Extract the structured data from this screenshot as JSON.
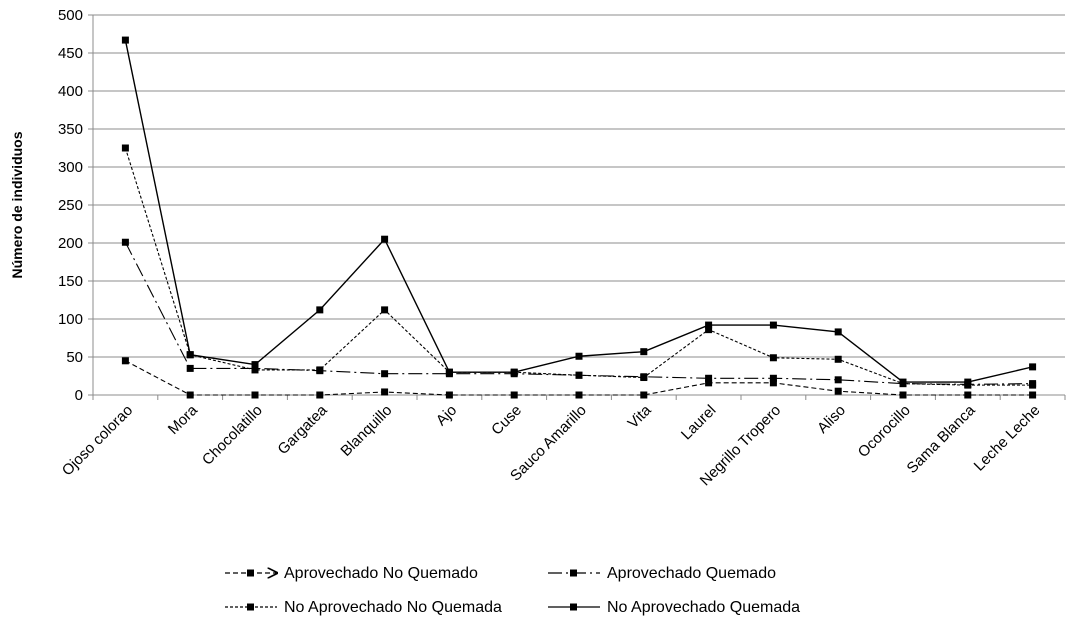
{
  "chart_data": {
    "type": "line",
    "title": "",
    "xlabel": "",
    "ylabel": "Número de individuos",
    "ylim": [
      0,
      500
    ],
    "yticks": [
      0,
      50,
      100,
      150,
      200,
      250,
      300,
      350,
      400,
      450,
      500
    ],
    "grid": true,
    "legend_position": "bottom",
    "categories": [
      "Ojoso colorao",
      "Mora",
      "Chocolatillo",
      "Gargatea",
      "Blanquillo",
      "Ajo",
      "Cuse",
      "Sauco Amarillo",
      "Vita",
      "Laurel",
      "Negrillo Tropero",
      "Aliso",
      "Ocorocillo",
      "Sama Blanca",
      "Leche Leche"
    ],
    "series": [
      {
        "name": "Aprovechado No Quemado",
        "dash": "5,3",
        "arrow": true,
        "values": [
          45,
          0,
          0,
          0,
          4,
          0,
          0,
          0,
          0,
          16,
          16,
          5,
          0,
          0,
          0
        ]
      },
      {
        "name": "Aprovechado  Quemado",
        "dash": "14,4,2,4",
        "arrow": false,
        "values": [
          201,
          35,
          35,
          32,
          28,
          28,
          28,
          26,
          24,
          22,
          22,
          20,
          15,
          14,
          15
        ]
      },
      {
        "name": "No Aprovechado No Quemada",
        "dash": "3,2",
        "arrow": false,
        "values": [
          325,
          53,
          33,
          33,
          112,
          30,
          30,
          26,
          23,
          86,
          49,
          47,
          15,
          13,
          13
        ]
      },
      {
        "name": "No Aprovechado  Quemada",
        "dash": "",
        "arrow": false,
        "values": [
          467,
          53,
          40,
          112,
          205,
          30,
          30,
          51,
          57,
          92,
          92,
          83,
          17,
          17,
          37
        ]
      }
    ]
  }
}
